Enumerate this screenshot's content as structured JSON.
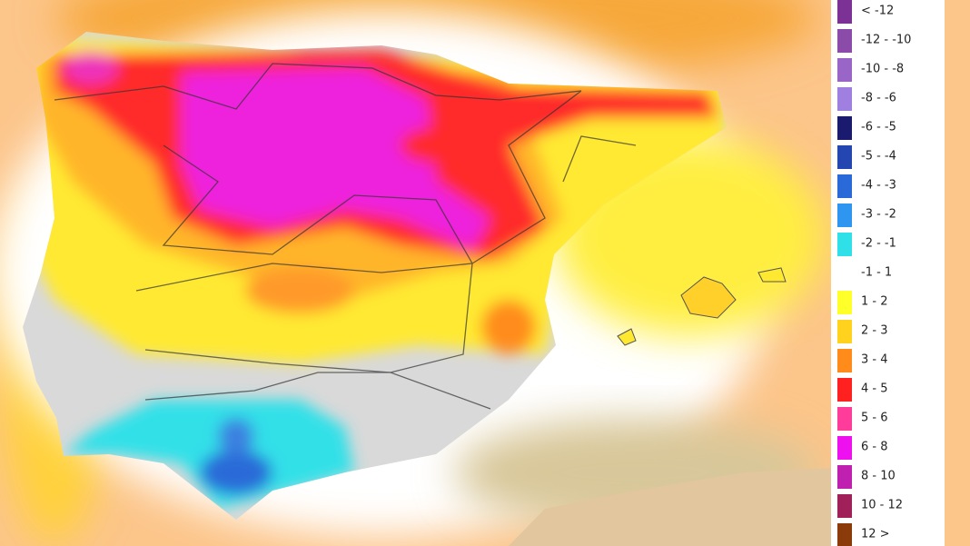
{
  "legend": [
    {
      "label": "< -12",
      "color": "#7b3294"
    },
    {
      "label": "-12 - -10",
      "color": "#8a4ca8"
    },
    {
      "label": "-10 - -8",
      "color": "#9966c8"
    },
    {
      "label": "-8 - -6",
      "color": "#9f80e0"
    },
    {
      "label": "-6 - -5",
      "color": "#1a1a6e"
    },
    {
      "label": "-5 - -4",
      "color": "#2346b0"
    },
    {
      "label": "-4 - -3",
      "color": "#2a6ad8"
    },
    {
      "label": "-3 - -2",
      "color": "#2e96f0"
    },
    {
      "label": "-2 - -1",
      "color": "#30e0e8"
    },
    {
      "label": "-1 - 1",
      "color": "#ffffff"
    },
    {
      "label": "1 - 2",
      "color": "#ffff2a"
    },
    {
      "label": "2 - 3",
      "color": "#ffd21e"
    },
    {
      "label": "3 - 4",
      "color": "#ff8c1a"
    },
    {
      "label": "4 - 5",
      "color": "#ff2020"
    },
    {
      "label": "5 - 6",
      "color": "#ff3c9a"
    },
    {
      "label": "6 - 8",
      "color": "#ee10ee"
    },
    {
      "label": "8 - 10",
      "color": "#c020b0"
    },
    {
      "label": "10 - 12",
      "color": "#a0205a"
    },
    {
      "label": "12 >",
      "color": "#8b3a0a"
    }
  ]
}
